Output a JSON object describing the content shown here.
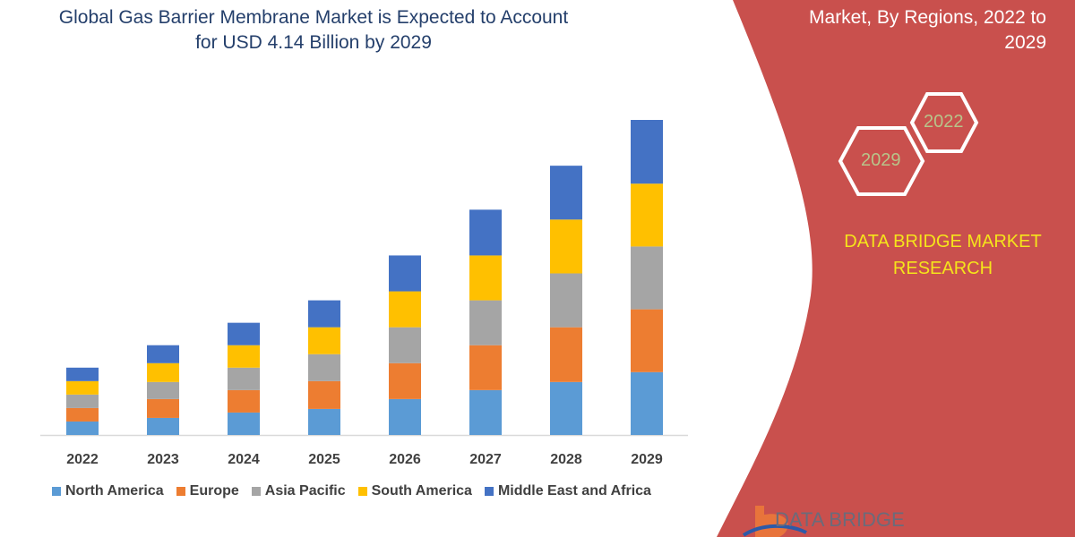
{
  "header": {
    "title_line1": "Global Gas Barrier Membrane Market is Expected to Account",
    "title_line2": "for USD 4.14 Billion by 2029"
  },
  "side_panel": {
    "title_line1": "Market, By Regions, 2022 to",
    "title_line2": "2029",
    "hex_years": [
      "2022",
      "2029"
    ],
    "brand_line1": "DATA BRIDGE MARKET",
    "brand_line2": "RESEARCH",
    "logo_text": "DATA BRIDGE",
    "background_color": "#c9504d"
  },
  "chart_data": {
    "type": "bar",
    "stacked": true,
    "title": "Global Gas Barrier Membrane Market is Expected to Account for USD 4.14 Billion by 2029",
    "xlabel": "",
    "ylabel": "",
    "y_axis_shown": false,
    "grid": false,
    "legend_position": "bottom",
    "ylim": [
      0,
      350
    ],
    "categories": [
      "2022",
      "2023",
      "2024",
      "2025",
      "2026",
      "2027",
      "2028",
      "2029"
    ],
    "series": [
      {
        "name": "North America",
        "color": "#5b9bd5",
        "values": [
          15,
          19,
          25,
          29,
          40,
          50,
          59,
          70
        ]
      },
      {
        "name": "Europe",
        "color": "#ed7d31",
        "values": [
          15,
          21,
          25,
          31,
          40,
          50,
          61,
          70
        ]
      },
      {
        "name": "Asia Pacific",
        "color": "#a5a5a5",
        "values": [
          15,
          19,
          25,
          30,
          40,
          50,
          60,
          70
        ]
      },
      {
        "name": "South America",
        "color": "#ffc000",
        "values": [
          15,
          21,
          25,
          30,
          40,
          50,
          60,
          70
        ]
      },
      {
        "name": "Middle East and Africa",
        "color": "#4472c4",
        "values": [
          15,
          20,
          25,
          30,
          40,
          51,
          60,
          71
        ]
      }
    ]
  }
}
